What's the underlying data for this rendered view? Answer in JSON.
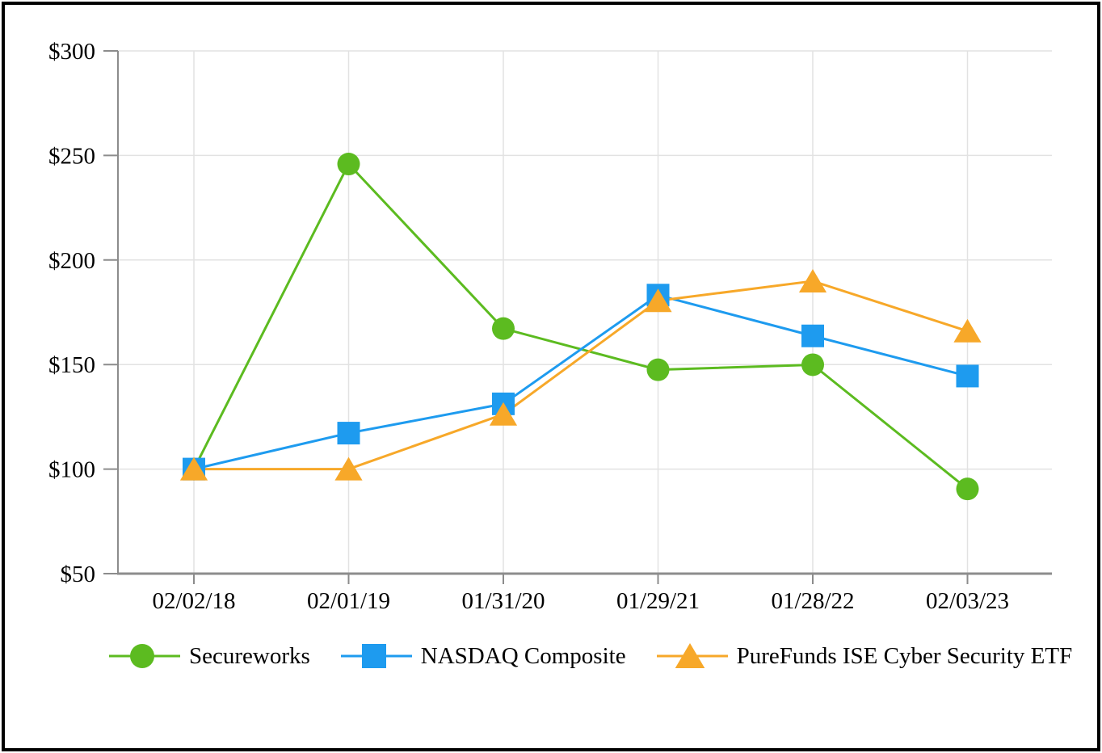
{
  "chart_data": {
    "type": "line",
    "title": "",
    "xlabel": "",
    "ylabel": "",
    "categories": [
      "02/02/18",
      "02/01/19",
      "01/31/20",
      "01/29/21",
      "01/28/22",
      "02/03/23"
    ],
    "y_ticks": [
      {
        "value": 300,
        "label": "$300"
      },
      {
        "value": 250,
        "label": "$250"
      },
      {
        "value": 200,
        "label": "$200"
      },
      {
        "value": 150,
        "label": "$150"
      },
      {
        "value": 100,
        "label": "$100"
      },
      {
        "value": 50,
        "label": "$50"
      }
    ],
    "ylim": [
      50,
      300
    ],
    "grid": true,
    "legend_position": "bottom",
    "series": [
      {
        "name": "Secureworks",
        "marker": "circle",
        "color": "#5CBB20",
        "values": [
          100,
          245.9,
          167.2,
          147.5,
          149.9,
          90.5
        ]
      },
      {
        "name": "NASDAQ Composite",
        "marker": "square",
        "color": "#1E9BEF",
        "values": [
          100,
          117.2,
          131.2,
          183.2,
          163.7,
          144.5
        ]
      },
      {
        "name": "PureFunds ISE Cyber Security ETF",
        "marker": "triangle",
        "color": "#F7A829",
        "values": [
          100,
          100,
          126.2,
          180.5,
          189.9,
          166
        ]
      }
    ]
  },
  "colors": {
    "background": "#ffffff",
    "frame_border": "#000000",
    "axis": "#8c8c8c",
    "gridline": "#e2e2e2",
    "text": "#000000"
  }
}
